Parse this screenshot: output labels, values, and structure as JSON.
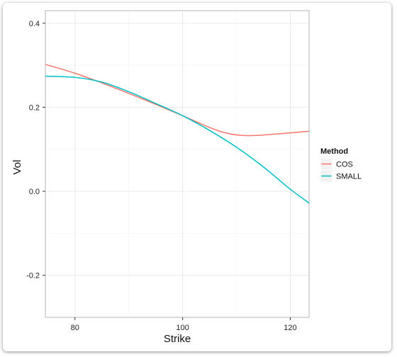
{
  "chart_data": {
    "type": "line",
    "title": "",
    "xlabel": "Strike",
    "ylabel": "Vol",
    "xlim": [
      74.5,
      123.5
    ],
    "ylim": [
      -0.3,
      0.43
    ],
    "xticks": [
      80,
      100,
      120
    ],
    "yticks": [
      -0.2,
      0.0,
      0.2,
      0.4
    ],
    "ytick_labels": [
      "-0.2",
      "0.0",
      "0.2",
      "0.4"
    ],
    "grid": true,
    "legend": {
      "title": "Method",
      "position": "right"
    },
    "series": [
      {
        "name": "COS",
        "color": "#F8766D",
        "x": [
          74.5,
          80,
          85,
          90,
          95,
          100,
          105,
          108,
          111,
          114,
          117,
          120,
          123.5
        ],
        "y": [
          0.302,
          0.281,
          0.258,
          0.233,
          0.207,
          0.18,
          0.152,
          0.139,
          0.133,
          0.133,
          0.136,
          0.139,
          0.143
        ]
      },
      {
        "name": "SMALL",
        "color": "#00BFC4",
        "x": [
          74.5,
          80,
          85,
          90,
          95,
          100,
          105,
          110,
          115,
          120,
          123.5
        ],
        "y": [
          0.274,
          0.271,
          0.26,
          0.237,
          0.209,
          0.18,
          0.145,
          0.105,
          0.058,
          0.005,
          -0.028
        ]
      }
    ]
  }
}
